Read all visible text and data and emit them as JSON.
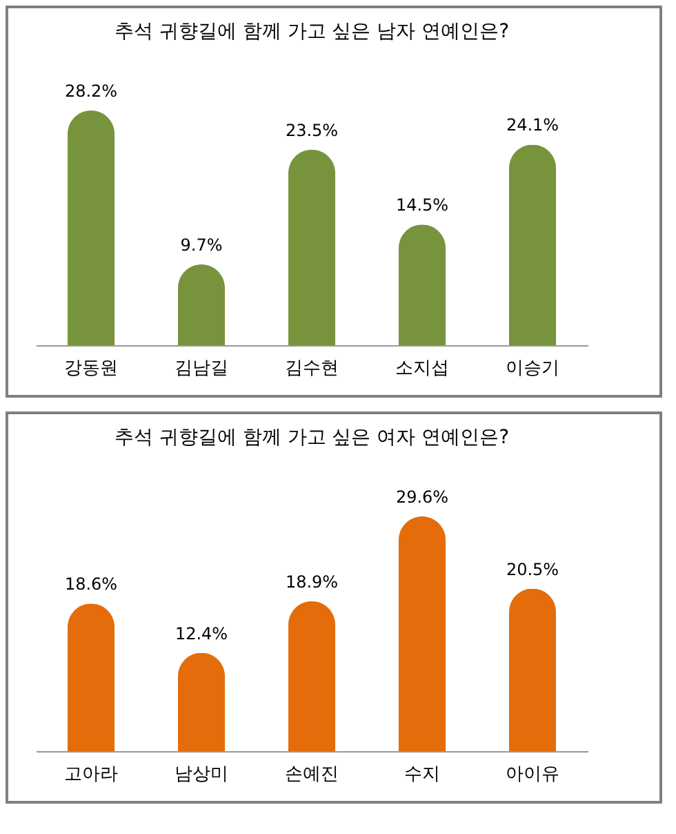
{
  "chart_data": [
    {
      "type": "bar",
      "title": "추석 귀향길에 함께 가고 싶은 남자 연예인은?",
      "categories": [
        "강동원",
        "김남길",
        "김수현",
        "소지섭",
        "이승기"
      ],
      "values": [
        28.2,
        9.7,
        23.5,
        14.5,
        24.1
      ],
      "value_labels": [
        "28.2%",
        "9.7%",
        "23.5%",
        "14.5%",
        "24.1%"
      ],
      "color": "#77933c"
    },
    {
      "type": "bar",
      "title": "추석 귀향길에 함께 가고 싶은 여자 연예인은?",
      "categories": [
        "고아라",
        "남상미",
        "손예진",
        "수지",
        "아이유"
      ],
      "values": [
        18.6,
        12.4,
        18.9,
        29.6,
        20.5
      ],
      "value_labels": [
        "18.6%",
        "12.4%",
        "18.9%",
        "29.6%",
        "20.5%"
      ],
      "color": "#e46c0a"
    }
  ]
}
